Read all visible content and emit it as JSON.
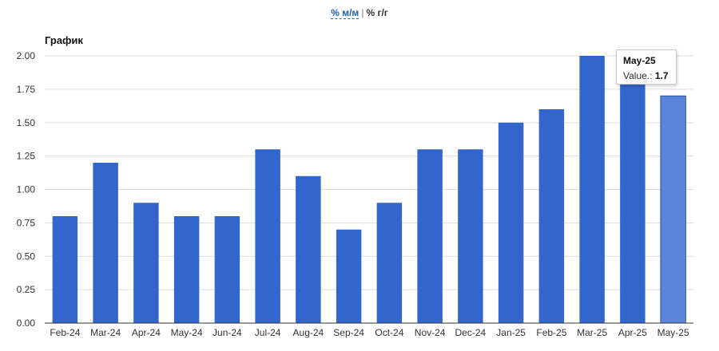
{
  "toggle": {
    "mom_label": "% м/м",
    "separator": "|",
    "yoy_label": "% г/г"
  },
  "chart_data": {
    "type": "bar",
    "title": "График",
    "xlabel": "",
    "ylabel": "",
    "categories": [
      "Feb-24",
      "Mar-24",
      "Apr-24",
      "May-24",
      "Jun-24",
      "Jul-24",
      "Aug-24",
      "Sep-24",
      "Oct-24",
      "Nov-24",
      "Dec-24",
      "Jan-25",
      "Feb-25",
      "Mar-25",
      "Apr-25",
      "May-25"
    ],
    "values": [
      0.8,
      1.2,
      0.9,
      0.8,
      0.8,
      1.3,
      1.1,
      0.7,
      0.9,
      1.3,
      1.3,
      1.5,
      1.6,
      2.0,
      1.8,
      1.7
    ],
    "ylim": [
      0,
      2.0
    ],
    "yticks": [
      "0.00",
      "0.25",
      "0.50",
      "0.75",
      "1.00",
      "1.25",
      "1.50",
      "1.75",
      "2.00"
    ],
    "bar_color": "#3366cc",
    "highlight_color": "#5b85d8",
    "grid": true,
    "legend": "none"
  },
  "tooltip": {
    "title": "May-25",
    "label": "Value.:",
    "value": "1.7",
    "highlighted_index": 15
  }
}
